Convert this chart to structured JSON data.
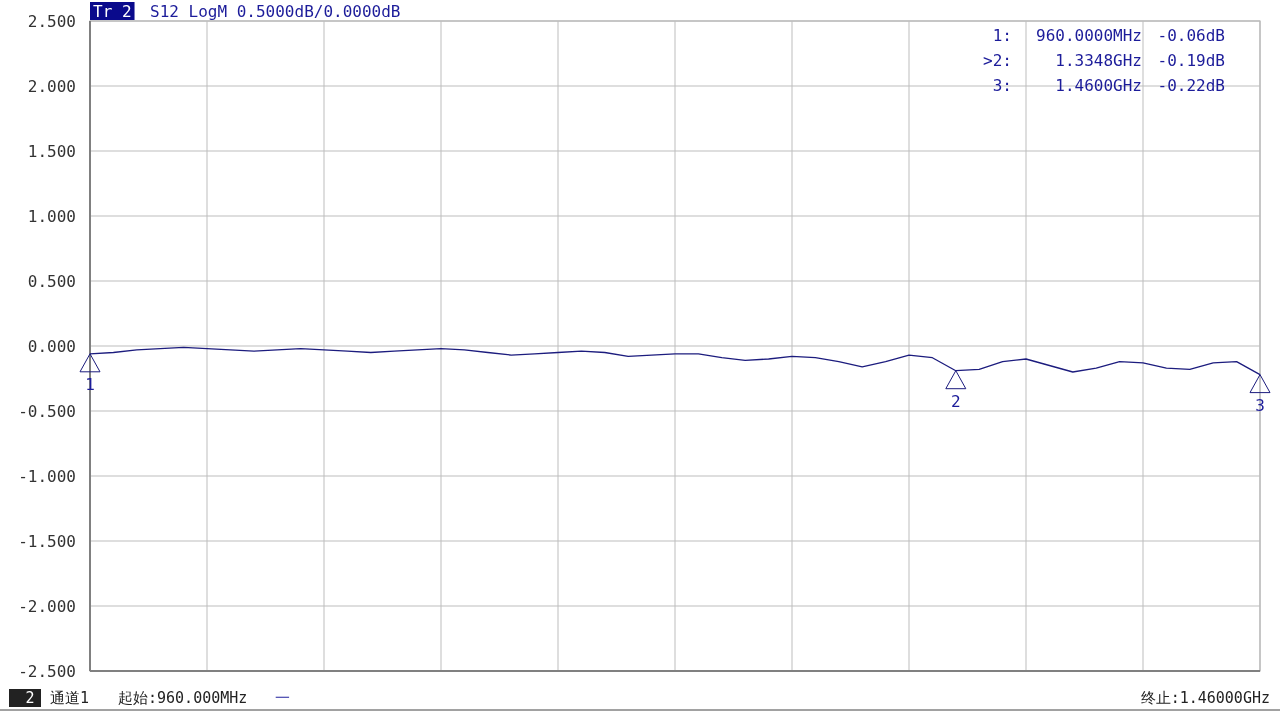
{
  "chart_data": {
    "type": "line",
    "color": "#1c1c7e",
    "grid": true,
    "tick_labels": "y",
    "categories": [
      null,
      null,
      null,
      null,
      null,
      null,
      null,
      null,
      null,
      null,
      null,
      null,
      null,
      null,
      null,
      null,
      null,
      null,
      null,
      null,
      null,
      null,
      null,
      null,
      null,
      null,
      null,
      null,
      null,
      null,
      null,
      null,
      null,
      null,
      null,
      null,
      null,
      null,
      null,
      null,
      null,
      null,
      null,
      null,
      null,
      null,
      null,
      null,
      null,
      null,
      null
    ],
    "values": [
      -0.06,
      -0.05,
      -0.03,
      -0.02,
      -0.01,
      -0.02,
      -0.03,
      -0.04,
      -0.03,
      -0.02,
      -0.03,
      -0.04,
      -0.05,
      -0.04,
      -0.03,
      -0.02,
      -0.03,
      -0.05,
      -0.07,
      -0.06,
      -0.05,
      -0.04,
      -0.05,
      -0.08,
      -0.07,
      -0.06,
      -0.06,
      -0.09,
      -0.11,
      -0.1,
      -0.08,
      -0.09,
      -0.12,
      -0.16,
      -0.12,
      -0.07,
      -0.09,
      -0.19,
      -0.18,
      -0.12,
      -0.1,
      -0.15,
      -0.2,
      -0.17,
      -0.12,
      -0.13,
      -0.17,
      -0.18,
      -0.13,
      -0.12,
      -0.22
    ],
    "ylim": [
      -2.5,
      2.5
    ],
    "yticks": [
      {
        "value": 2.5,
        "label": "2.500"
      },
      {
        "value": 2,
        "label": "2.000"
      },
      {
        "value": 1.5,
        "label": "1.500"
      },
      {
        "value": 1,
        "label": "1.000"
      },
      {
        "value": 0.5,
        "label": "0.500"
      },
      {
        "value": 0,
        "label": "0.000"
      },
      {
        "value": -0.5,
        "label": "-0.500"
      },
      {
        "value": -1,
        "label": "-1.000"
      },
      {
        "value": -1.5,
        "label": "-1.500"
      },
      {
        "value": -2,
        "label": "-2.000"
      },
      {
        "value": -2.5,
        "label": "-2.500"
      }
    ],
    "annotations": [
      "Tr 2",
      "S12 LogM 0.5000dB/0.0000dB",
      "1:",
      "960.0000MHz",
      "-0.06dB",
      ">2:",
      "1.3348GHz",
      "-0.19dB",
      "3:",
      "1.4600GHz",
      "-0.22dB",
      "2",
      "通道1",
      "起始:960.000MHz",
      "一",
      "终止:1.46000GHz",
      {
        "text": "1",
        "y": -0.06
      },
      {
        "text": "2",
        "y": -0.19
      },
      {
        "text": "3",
        "y": -0.22
      }
    ]
  }
}
